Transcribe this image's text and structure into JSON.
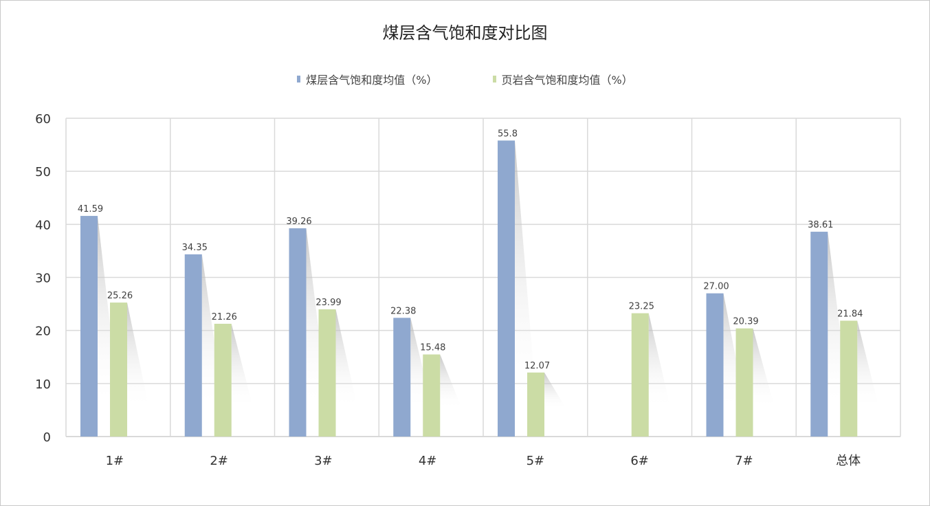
{
  "chart_data": {
    "type": "bar",
    "title": "煤层含气饱和度对比图",
    "categories": [
      "1#",
      "2#",
      "3#",
      "4#",
      "5#",
      "6#",
      "7#",
      "总体"
    ],
    "series": [
      {
        "name": "煤层含气饱和度均值（%）",
        "color": "#8FA8CF",
        "values": [
          41.59,
          34.35,
          39.26,
          22.38,
          55.8,
          null,
          27.0,
          38.61
        ],
        "labels": [
          "41.59",
          "34.35",
          "39.26",
          "22.38",
          "55.8",
          "",
          "27.00",
          "38.61"
        ]
      },
      {
        "name": "页岩含气饱和度均值（%）",
        "color": "#CBDCA5",
        "values": [
          25.26,
          21.26,
          23.99,
          15.48,
          12.07,
          23.25,
          20.39,
          21.84
        ],
        "labels": [
          "25.26",
          "21.26",
          "23.99",
          "15.48",
          "12.07",
          "23.25",
          "20.39",
          "21.84"
        ]
      }
    ],
    "ylim": [
      0,
      60
    ],
    "yticks": [
      "0",
      "10",
      "20",
      "30",
      "40",
      "50",
      "60"
    ],
    "grid": true,
    "legend_position": "top"
  }
}
